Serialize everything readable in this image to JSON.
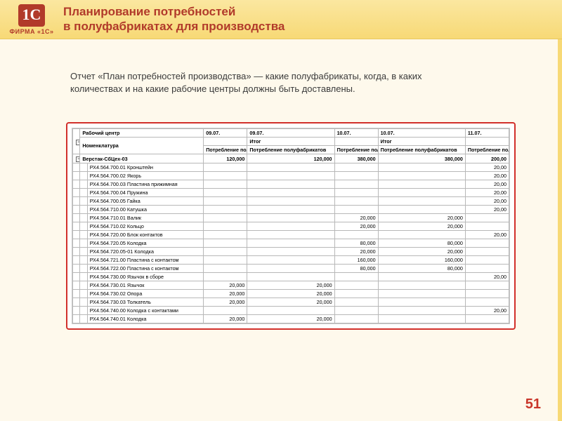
{
  "page_number": "51",
  "logo": {
    "mark": "1С",
    "brand": "ФИРМА «1С»"
  },
  "title": {
    "line1": "Планирование потребностей",
    "line2": "в полуфабрикатах для производства"
  },
  "description": "Отчет «План потребностей производства» — какие полуфабрикаты, когда, в каких количествах и на какие рабочие центры должны быть доставлены.",
  "report": {
    "type": "table",
    "header_row1": {
      "work_center": "Рабочий центр",
      "dates": [
        "09.07.",
        "09.07.",
        "10.07.",
        "10.07.",
        "11.07."
      ]
    },
    "header_row2": {
      "nomenclature": "Номенклатура",
      "itog": "Итог"
    },
    "header_row3": {
      "metric": "Потребление полуфабрикатов"
    },
    "group": {
      "label": "Верстак-СбЦех-03",
      "totals": [
        "120,000",
        "120,000",
        "380,000",
        "380,000",
        "200,00"
      ]
    },
    "rows": [
      {
        "name": "РХ4.564.700.01 Кронштейн",
        "v": [
          "",
          "",
          "",
          "",
          "20,00"
        ]
      },
      {
        "name": "РХ4.564.700.02 Якорь",
        "v": [
          "",
          "",
          "",
          "",
          "20,00"
        ]
      },
      {
        "name": "РХ4.564.700.03 Пластина прижимная",
        "v": [
          "",
          "",
          "",
          "",
          "20,00"
        ]
      },
      {
        "name": "РХ4.564.700.04 Пружина",
        "v": [
          "",
          "",
          "",
          "",
          "20,00"
        ]
      },
      {
        "name": "РХ4.564.700.05 Гайка",
        "v": [
          "",
          "",
          "",
          "",
          "20,00"
        ]
      },
      {
        "name": "РХ4.564.710.00 Катушка",
        "v": [
          "",
          "",
          "",
          "",
          "20,00"
        ]
      },
      {
        "name": "РХ4.564.710.01 Валик",
        "v": [
          "",
          "",
          "20,000",
          "20,000",
          ""
        ]
      },
      {
        "name": "РХ4.564.710.02 Кольцо",
        "v": [
          "",
          "",
          "20,000",
          "20,000",
          ""
        ]
      },
      {
        "name": "РХ4.564.720.00 Блок контактов",
        "v": [
          "",
          "",
          "",
          "",
          "20,00"
        ]
      },
      {
        "name": "РХ4.564.720.05 Колодка",
        "v": [
          "",
          "",
          "80,000",
          "80,000",
          ""
        ]
      },
      {
        "name": "РХ4.564.720.05-01 Колодка",
        "v": [
          "",
          "",
          "20,000",
          "20,000",
          ""
        ]
      },
      {
        "name": "РХ4.564.721.00 Пластина с контактом",
        "v": [
          "",
          "",
          "160,000",
          "160,000",
          ""
        ]
      },
      {
        "name": "РХ4.564.722.00 Пластина с контактом",
        "v": [
          "",
          "",
          "80,000",
          "80,000",
          ""
        ]
      },
      {
        "name": "РХ4.564.730.00 Язычок в сборе",
        "v": [
          "",
          "",
          "",
          "",
          "20,00"
        ]
      },
      {
        "name": "РХ4.564.730.01 Язычок",
        "v": [
          "20,000",
          "20,000",
          "",
          "",
          ""
        ]
      },
      {
        "name": "РХ4.564.730.02 Опора",
        "v": [
          "20,000",
          "20,000",
          "",
          "",
          ""
        ]
      },
      {
        "name": "РХ4.564.730.03 Толкатель",
        "v": [
          "20,000",
          "20,000",
          "",
          "",
          ""
        ]
      },
      {
        "name": "РХ4.564.740.00 Колодка с контактами",
        "v": [
          "",
          "",
          "",
          "",
          "20,00"
        ]
      },
      {
        "name": "РХ4.564.740.01 Колодка",
        "v": [
          "20,000",
          "20,000",
          "",
          "",
          ""
        ]
      }
    ]
  },
  "style": {
    "accent": "#b13a2a",
    "frame_border": "#d2302b",
    "bg": "#fef9ec",
    "header_grad_top": "#fbe7a0",
    "header_grad_bot": "#f7d976",
    "grid_border": "#b8b8b8",
    "font_main": "Arial"
  }
}
